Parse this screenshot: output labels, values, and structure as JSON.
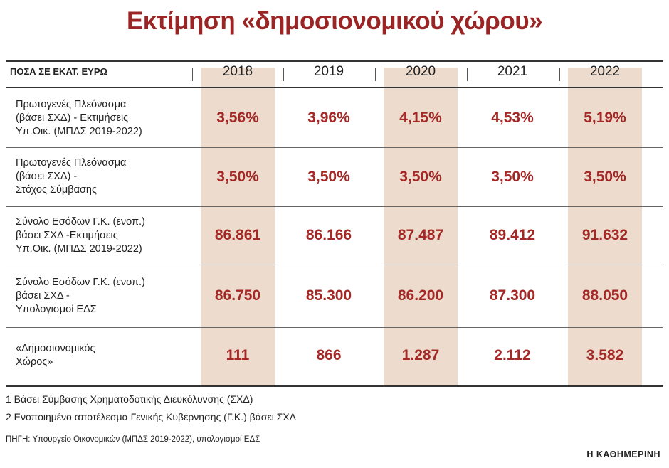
{
  "chart_data": {
    "type": "table",
    "title": "Εκτίμηση «δημοσιονομικού χώρου»",
    "header_label": "ΠΟΣΑ ΣΕ ΕΚΑΤ. ΕΥΡΩ",
    "columns": [
      "2018",
      "2019",
      "2020",
      "2021",
      "2022"
    ],
    "rows": [
      {
        "label": [
          "Πρωτογενές Πλεόνασμα",
          "(βάσει ΣΧΔ) - Εκτιμήσεις",
          "Υπ.Οικ. (ΜΠΔΣ 2019-2022)"
        ],
        "values": [
          "3,56%",
          "3,96%",
          "4,15%",
          "4,53%",
          "5,19%"
        ]
      },
      {
        "label": [
          "Πρωτογενές Πλεόνασμα",
          "(βάσει ΣΧΔ) -",
          "Στόχος Σύμβασης"
        ],
        "values": [
          "3,50%",
          "3,50%",
          "3,50%",
          "3,50%",
          "3,50%"
        ]
      },
      {
        "label": [
          "Σύνολο Εσόδων Γ.Κ. (ενοπ.)",
          "βάσει ΣΧΔ -Εκτιμήσεις",
          "Υπ.Οικ. (ΜΠΔΣ 2019-2022)"
        ],
        "values": [
          "86.861",
          "86.166",
          "87.487",
          "89.412",
          "91.632"
        ]
      },
      {
        "label": [
          "Σύνολο Εσόδων Γ.Κ. (ενοπ.)",
          "βάσει ΣΧΔ -",
          "Υπολογισμοί ΕΔΣ"
        ],
        "values": [
          "86.750",
          "85.300",
          "86.200",
          "87.300",
          "88.050"
        ]
      },
      {
        "label": [
          "«Δημοσιονομικός",
          "Χώρος»"
        ],
        "values": [
          "111",
          "866",
          "1.287",
          "2.112",
          "3.582"
        ]
      }
    ],
    "notes": [
      "1 Βάσει Σύμβασης Χρηματοδοτικής Διευκόλυνσης (ΣΧΔ)",
      "2 Ενοποιημένο αποτέλεσμα Γενικής Κυβέρνησης (Γ.Κ.) βάσει ΣΧΔ"
    ],
    "source": "ΠΗΓΗ: Υπουργείο Οικονομικών (ΜΠΔΣ 2019-2022), υπολογισμοί ΕΔΣ",
    "brand": "Η ΚΑΘΗΜΕΡΙΝΗ",
    "colors": {
      "title": "#9b2524",
      "values": "#a32826",
      "shade": "#eddcce",
      "text": "#222222"
    }
  }
}
